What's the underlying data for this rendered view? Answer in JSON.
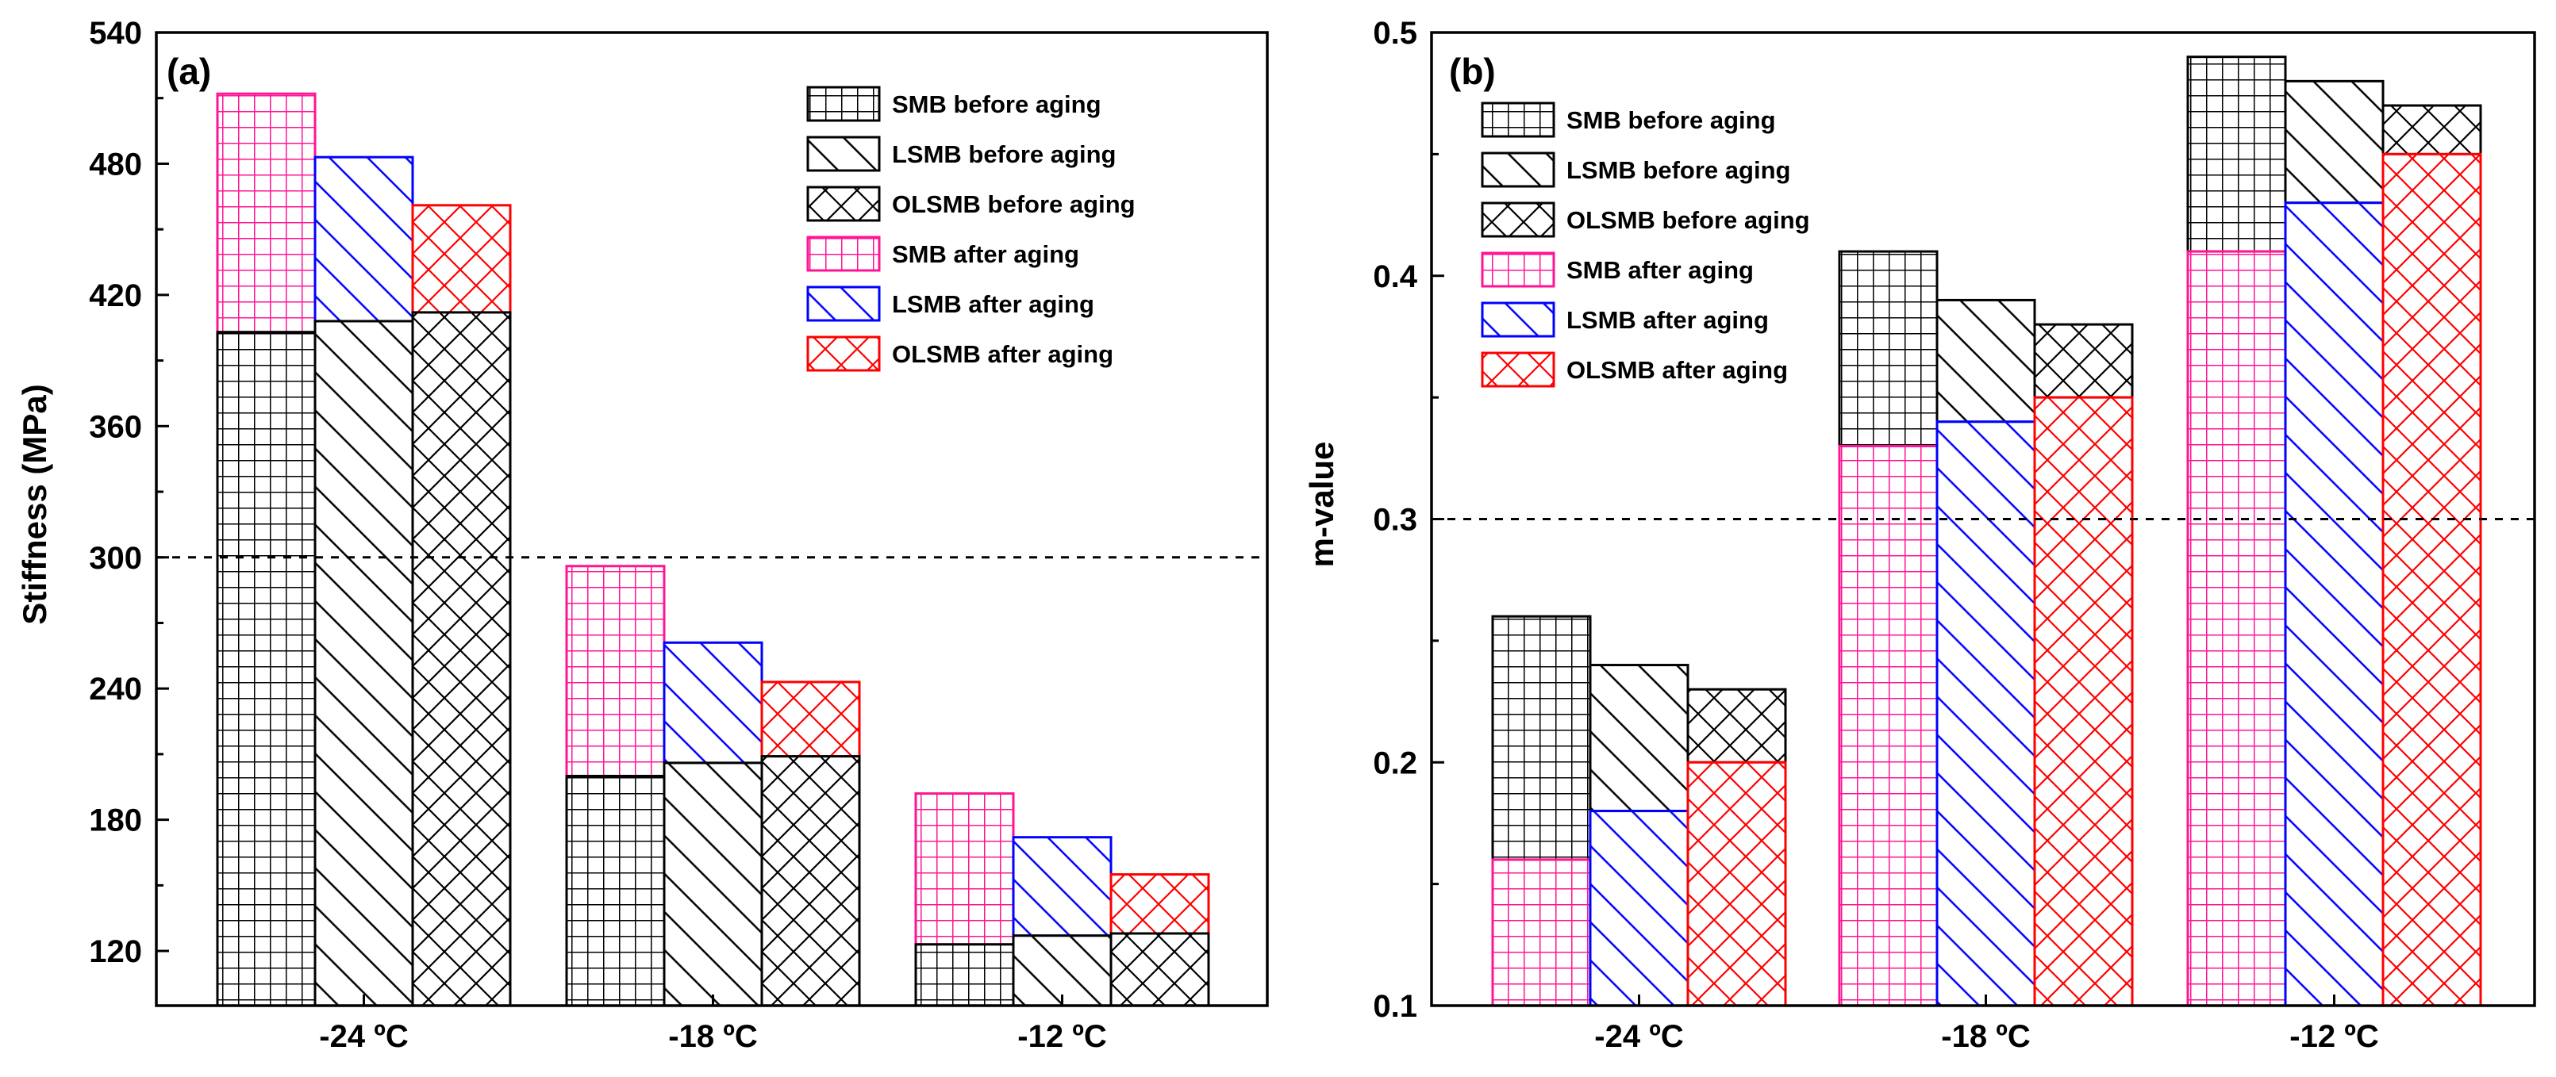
{
  "legend_entries": [
    {
      "label": "SMB before aging",
      "pattern": "grid",
      "color": "#000000"
    },
    {
      "label": "LSMB before aging",
      "pattern": "diag",
      "color": "#000000"
    },
    {
      "label": "OLSMB before aging",
      "pattern": "cross",
      "color": "#000000"
    },
    {
      "label": "SMB after aging",
      "pattern": "grid",
      "color": "#ff1493"
    },
    {
      "label": "LSMB after aging",
      "pattern": "diag",
      "color": "#0000ff"
    },
    {
      "label": "OLSMB after aging",
      "pattern": "cross",
      "color": "#ff0000"
    }
  ],
  "chart_data": [
    {
      "type": "bar",
      "panel": "(a)",
      "title": "",
      "xlabel": "",
      "ylabel": "Stiffness (MPa)",
      "ylim": [
        95,
        540
      ],
      "yticks": [
        120,
        180,
        240,
        300,
        360,
        420,
        480,
        540
      ],
      "categories": [
        "-24 ºC",
        "-18 ºC",
        "-12 ºC"
      ],
      "reference_line": 300,
      "legend_position": "top-right",
      "series_before": [
        {
          "name": "SMB before aging",
          "values": [
            403,
            200,
            123
          ]
        },
        {
          "name": "LSMB before aging",
          "values": [
            408,
            206,
            127
          ]
        },
        {
          "name": "OLSMB before aging",
          "values": [
            412,
            209,
            128
          ]
        }
      ],
      "series_after": [
        {
          "name": "SMB after aging",
          "values": [
            512,
            296,
            192
          ]
        },
        {
          "name": "LSMB after aging",
          "values": [
            483,
            261,
            172
          ]
        },
        {
          "name": "OLSMB after aging",
          "values": [
            461,
            243,
            155
          ]
        }
      ]
    },
    {
      "type": "bar",
      "panel": "(b)",
      "title": "",
      "xlabel": "",
      "ylabel": "m-value",
      "ylim": [
        0.1,
        0.5
      ],
      "yticks": [
        0.1,
        0.2,
        0.3,
        0.4,
        0.5
      ],
      "categories": [
        "-24 ºC",
        "-18 ºC",
        "-12 ºC"
      ],
      "reference_line": 0.3,
      "legend_position": "top-left",
      "series_before": [
        {
          "name": "SMB before aging",
          "values": [
            0.26,
            0.41,
            0.49
          ]
        },
        {
          "name": "LSMB before aging",
          "values": [
            0.24,
            0.39,
            0.48
          ]
        },
        {
          "name": "OLSMB before aging",
          "values": [
            0.23,
            0.38,
            0.47
          ]
        }
      ],
      "series_after": [
        {
          "name": "SMB after aging",
          "values": [
            0.16,
            0.33,
            0.41
          ]
        },
        {
          "name": "LSMB after aging",
          "values": [
            0.18,
            0.34,
            0.43
          ]
        },
        {
          "name": "OLSMB after aging",
          "values": [
            0.2,
            0.35,
            0.45
          ]
        }
      ]
    }
  ]
}
